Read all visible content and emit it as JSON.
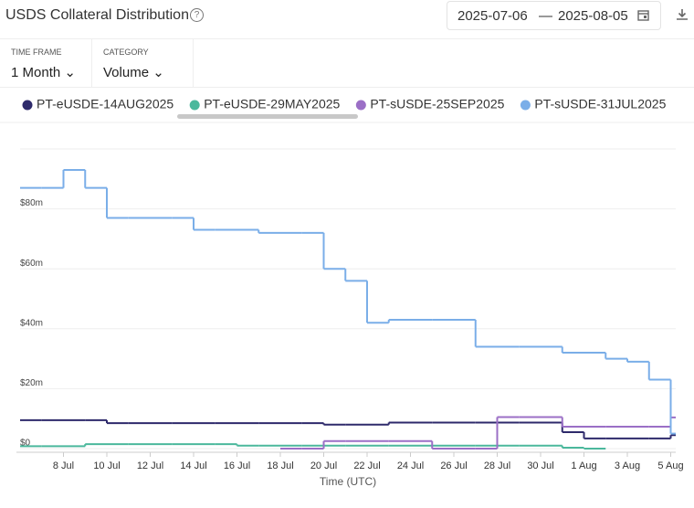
{
  "header": {
    "title": "USDS Collateral Distribution",
    "date_from": "2025-07-06",
    "date_separator": "—",
    "date_to": "2025-08-05"
  },
  "controls": [
    {
      "label": "TIME FRAME",
      "value": "1 Month"
    },
    {
      "label": "CATEGORY",
      "value": "Volume"
    }
  ],
  "chart_data": {
    "type": "line",
    "step": true,
    "x_label": "Time (UTC)",
    "categories": [
      null,
      null,
      "8 Jul",
      null,
      "10 Jul",
      null,
      "12 Jul",
      null,
      "14 Jul",
      null,
      "16 Jul",
      null,
      "18 Jul",
      null,
      "20 Jul",
      null,
      "22 Jul",
      null,
      "24 Jul",
      null,
      "26 Jul",
      null,
      "28 Jul",
      null,
      "30 Jul",
      null,
      "1 Aug",
      null,
      "3 Aug",
      null,
      "5 Aug"
    ],
    "ylim": [
      0,
      100
    ],
    "yticks": [
      {
        "value": 0,
        "label": "$0"
      },
      {
        "value": 20,
        "label": "$20m"
      },
      {
        "value": 40,
        "label": "$40m"
      },
      {
        "value": 60,
        "label": "$60m"
      },
      {
        "value": 80,
        "label": "$80m"
      }
    ],
    "grid": true,
    "series": [
      {
        "name": "PT-eUSDE-14AUG2025",
        "color": "#2e2a6b",
        "values": [
          9.5,
          9.5,
          9.5,
          9.5,
          8.5,
          8.5,
          8.5,
          8.5,
          8.5,
          8.5,
          8.5,
          8.5,
          8.5,
          8.5,
          8,
          8,
          8,
          8.7,
          8.7,
          8.7,
          8.7,
          8.7,
          8.7,
          8.7,
          8.7,
          5.5,
          3.4,
          3.4,
          3.4,
          3.4,
          4.5
        ]
      },
      {
        "name": "PT-eUSDE-29MAY2025",
        "color": "#4bb89c",
        "values": [
          0.8,
          0.8,
          0.8,
          1.5,
          1.5,
          1.5,
          1.5,
          1.5,
          1.5,
          1.5,
          1,
          1,
          1,
          1,
          1,
          1,
          1,
          1,
          1,
          1,
          1,
          1,
          1,
          1,
          1,
          0.3,
          0,
          null,
          null,
          null,
          null
        ]
      },
      {
        "name": "PT-sUSDE-25SEP2025",
        "color": "#9b6fc6",
        "values": [
          null,
          null,
          null,
          null,
          null,
          null,
          null,
          null,
          null,
          null,
          null,
          null,
          0,
          0,
          2.5,
          2.5,
          2.5,
          2.5,
          2.5,
          0,
          0,
          0,
          10.5,
          10.5,
          10.5,
          7.3,
          7.3,
          7.3,
          7.3,
          7.3,
          10.4
        ]
      },
      {
        "name": "PT-sUSDE-31JUL2025",
        "color": "#7aaee8",
        "values": [
          87,
          87,
          93,
          87,
          77,
          77,
          77,
          77,
          73,
          73,
          73,
          72,
          72,
          72,
          60,
          56,
          42,
          43,
          43,
          43,
          43,
          34,
          34,
          34,
          34,
          32,
          32,
          30,
          29,
          23,
          5
        ]
      }
    ]
  }
}
